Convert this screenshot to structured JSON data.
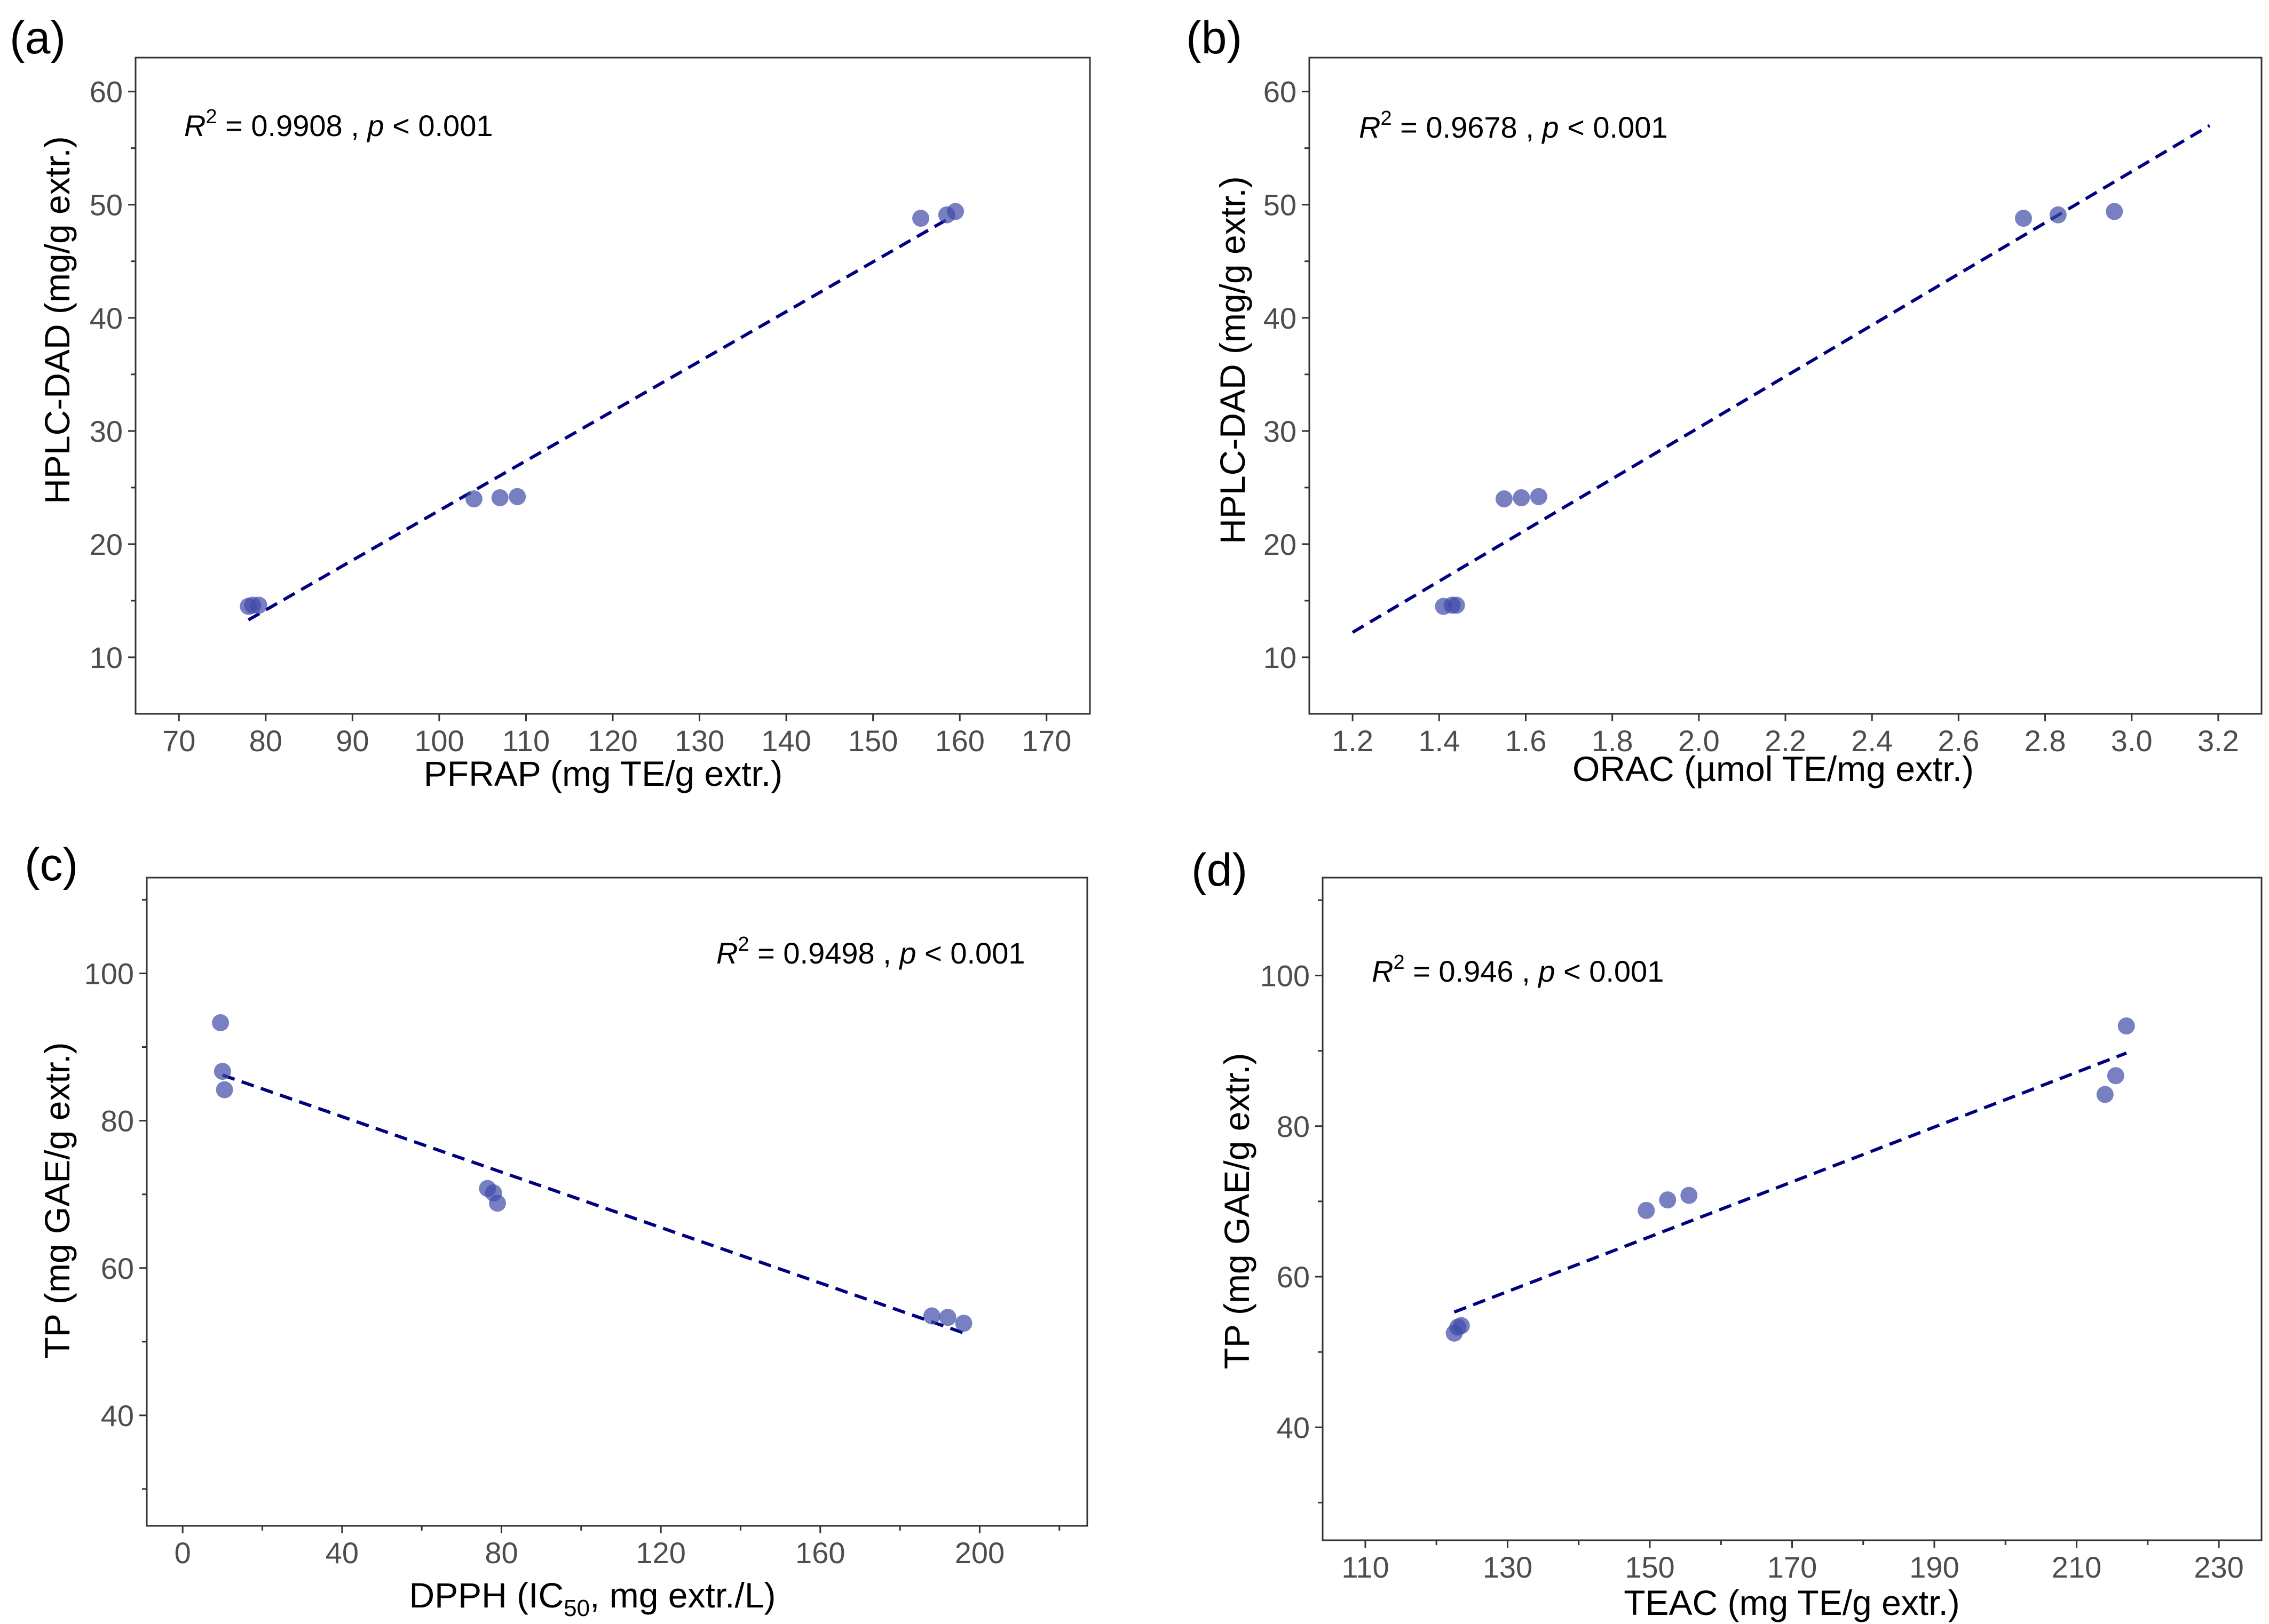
{
  "colors": {
    "points": "#3f4aa8",
    "fit_line": "#000080",
    "frame": "#333333",
    "tick_text": "#4d4d4d"
  },
  "chart_data": [
    {
      "id": "a",
      "panel_label": "(a)",
      "type": "scatter",
      "xlabel": "PFRAP (mg TE/g extr.)",
      "ylabel": "HPLC-DAD (mg/g extr.)",
      "xlim": [
        65,
        175
      ],
      "ylim": [
        5,
        63
      ],
      "x_ticks": [
        70,
        80,
        90,
        100,
        110,
        120,
        130,
        140,
        150,
        160,
        170
      ],
      "x_tick_labels": [
        "70",
        "80",
        "90",
        "100",
        "110",
        "120",
        "130",
        "140",
        "150",
        "160",
        "170"
      ],
      "x_minor_ticks": [],
      "y_ticks": [
        10,
        20,
        30,
        40,
        50,
        60
      ],
      "y_tick_labels": [
        "10",
        "20",
        "30",
        "40",
        "50",
        "60"
      ],
      "y_minor_ticks": [
        15,
        25,
        35,
        45,
        55
      ],
      "annotation": {
        "r2_symbol": "R",
        "r2_exp": "2",
        "r2_value": " = 0.9908 , ",
        "p_symbol": "p",
        "p_value": " < 0.001",
        "position": "top-left"
      },
      "fit": {
        "x": [
          78,
          159
        ],
        "y": [
          13.3,
          48.9
        ]
      },
      "x": [
        78.0,
        78.5,
        79.2,
        104.0,
        107.0,
        109.0,
        155.5,
        158.5,
        159.5
      ],
      "y": [
        14.5,
        14.6,
        14.6,
        24.0,
        24.1,
        24.2,
        48.8,
        49.1,
        49.4
      ]
    },
    {
      "id": "b",
      "panel_label": "(b)",
      "type": "scatter",
      "xlabel": "ORAC (µmol TE/mg extr.)",
      "ylabel": "HPLC-DAD (mg/g extr.)",
      "xlim": [
        1.1,
        3.3
      ],
      "ylim": [
        5,
        63
      ],
      "x_ticks": [
        1.2,
        1.4,
        1.6,
        1.8,
        2.0,
        2.2,
        2.4,
        2.6,
        2.8,
        3.0,
        3.2
      ],
      "x_tick_labels": [
        "1.2",
        "1.4",
        "1.6",
        "1.8",
        "2.0",
        "2.2",
        "2.4",
        "2.6",
        "2.8",
        "3.0",
        "3.2"
      ],
      "x_minor_ticks": [],
      "y_ticks": [
        10,
        20,
        30,
        40,
        50,
        60
      ],
      "y_tick_labels": [
        "10",
        "20",
        "30",
        "40",
        "50",
        "60"
      ],
      "y_minor_ticks": [
        15,
        25,
        35,
        45,
        55
      ],
      "annotation": {
        "r2_symbol": "R",
        "r2_exp": "2",
        "r2_value": " = 0.9678 , ",
        "p_symbol": "p",
        "p_value": " < 0.001",
        "position": "top-left"
      },
      "fit": {
        "x": [
          1.2,
          3.18
        ],
        "y": [
          12.2,
          57.0
        ]
      },
      "x": [
        1.41,
        1.43,
        1.44,
        1.55,
        1.59,
        1.63,
        2.75,
        2.83,
        2.96
      ],
      "y": [
        14.5,
        14.6,
        14.6,
        24.0,
        24.1,
        24.2,
        48.8,
        49.1,
        49.4
      ]
    },
    {
      "id": "c",
      "panel_label": "(c)",
      "type": "scatter",
      "xlabel_pre": "DPPH (IC",
      "xlabel_sub": "50",
      "xlabel_post": ", mg extr./L)",
      "ylabel": "TP (mg GAE/g extr.)",
      "xlim": [
        -9,
        227
      ],
      "ylim": [
        25,
        113
      ],
      "x_ticks": [
        0,
        40,
        80,
        120,
        160,
        200
      ],
      "x_tick_labels": [
        "0",
        "40",
        "80",
        "120",
        "160",
        "200"
      ],
      "x_minor_ticks": [
        20,
        60,
        100,
        140,
        180,
        220
      ],
      "y_ticks": [
        40,
        60,
        80,
        100
      ],
      "y_tick_labels": [
        "40",
        "60",
        "80",
        "100"
      ],
      "y_minor_ticks": [
        30,
        50,
        70,
        90,
        110
      ],
      "annotation": {
        "r2_symbol": "R",
        "r2_exp": "2",
        "r2_value": " = 0.9498 , ",
        "p_symbol": "p",
        "p_value": " < 0.001",
        "position": "top-right"
      },
      "fit": {
        "x": [
          10,
          197
        ],
        "y": [
          86.2,
          51.0
        ]
      },
      "x": [
        9.5,
        10.0,
        10.5,
        76.5,
        78.0,
        79.0,
        188.0,
        192.0,
        196.0
      ],
      "y": [
        93.3,
        86.7,
        84.2,
        70.8,
        70.2,
        68.8,
        53.5,
        53.3,
        52.5
      ]
    },
    {
      "id": "d",
      "panel_label": "(d)",
      "type": "scatter",
      "xlabel": "TEAC (mg TE/g extr.)",
      "ylabel": "TP (mg GAE/g extr.)",
      "xlim": [
        104,
        236
      ],
      "ylim": [
        25,
        113
      ],
      "x_ticks": [
        110,
        130,
        150,
        170,
        190,
        210,
        230
      ],
      "x_tick_labels": [
        "110",
        "130",
        "150",
        "170",
        "190",
        "210",
        "230"
      ],
      "x_minor_ticks": [
        120,
        140,
        160,
        180,
        200,
        220
      ],
      "y_ticks": [
        40,
        60,
        80,
        100
      ],
      "y_tick_labels": [
        "40",
        "60",
        "80",
        "100"
      ],
      "y_minor_ticks": [
        30,
        50,
        70,
        90,
        110
      ],
      "annotation": {
        "r2_symbol": "R",
        "r2_exp": "2",
        "r2_value": " = 0.946 , ",
        "p_symbol": "p",
        "p_value": " < 0.001",
        "position": "top-left"
      },
      "fit": {
        "x": [
          122.5,
          217
        ],
        "y": [
          55.3,
          89.7
        ]
      },
      "x": [
        122.5,
        123.0,
        123.5,
        149.5,
        152.5,
        155.5,
        214.0,
        215.5,
        217.0
      ],
      "y": [
        52.5,
        53.3,
        53.5,
        68.8,
        70.2,
        70.8,
        84.2,
        86.7,
        93.3
      ]
    }
  ]
}
